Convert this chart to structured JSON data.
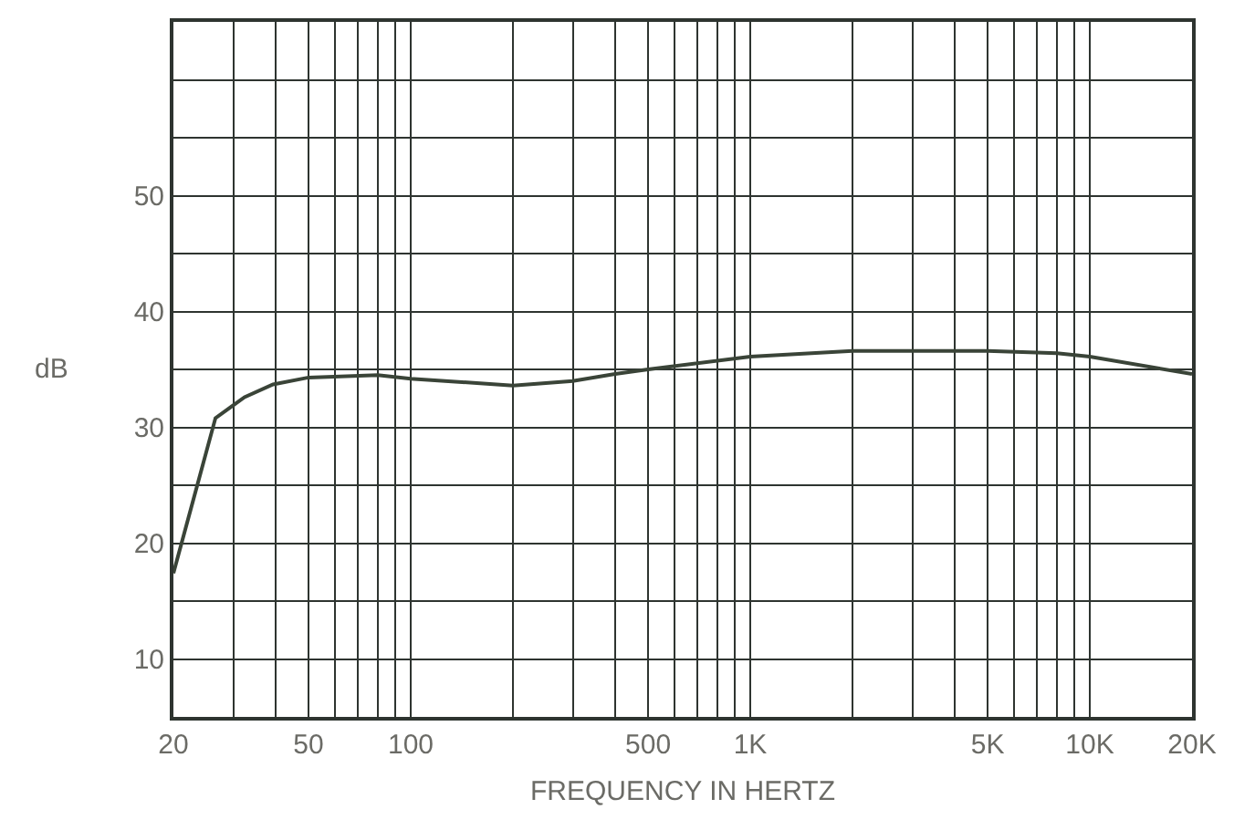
{
  "chart_data": {
    "type": "line",
    "xlabel": "FREQUENCY IN HERTZ",
    "ylabel": "dB",
    "log": "x",
    "grid": true,
    "marker": "none",
    "line_style": "solid",
    "xlim": [
      20,
      20000
    ],
    "ylim": [
      5,
      65
    ],
    "xticks": [
      20,
      {
        "value": 30,
        "label": null
      },
      {
        "value": 40,
        "label": null
      },
      50,
      {
        "value": 60,
        "label": null
      },
      {
        "value": 70,
        "label": null
      },
      {
        "value": 80,
        "label": null
      },
      {
        "value": 90,
        "label": null
      },
      100,
      {
        "value": 200,
        "label": null
      },
      {
        "value": 300,
        "label": null
      },
      {
        "value": 400,
        "label": null
      },
      500,
      {
        "value": 600,
        "label": null
      },
      {
        "value": 700,
        "label": null
      },
      {
        "value": 800,
        "label": null
      },
      {
        "value": 900,
        "label": null
      },
      {
        "value": 1000,
        "label": "1K"
      },
      {
        "value": 2000,
        "label": null
      },
      {
        "value": 3000,
        "label": null
      },
      {
        "value": 4000,
        "label": null
      },
      {
        "value": 5000,
        "label": "5K"
      },
      {
        "value": 6000,
        "label": null
      },
      {
        "value": 7000,
        "label": null
      },
      {
        "value": 8000,
        "label": null
      },
      {
        "value": 9000,
        "label": null
      },
      {
        "value": 10000,
        "label": "10K"
      },
      {
        "value": 20000,
        "label": "20K"
      }
    ],
    "yticks": [
      {
        "value": 5,
        "label": null
      },
      10,
      {
        "value": 15,
        "label": null
      },
      20,
      {
        "value": 25,
        "label": null
      },
      30,
      {
        "value": 35,
        "label": null
      },
      40,
      {
        "value": 45,
        "label": null
      },
      50,
      {
        "value": 55,
        "label": null
      },
      {
        "value": 60,
        "label": null
      },
      {
        "value": 65,
        "label": null
      }
    ],
    "x": [
      20,
      26.6,
      32.4,
      39.3,
      50,
      80,
      100,
      200,
      300,
      400,
      500,
      1000,
      2000,
      5000,
      8000,
      10000,
      20000
    ],
    "series": [
      {
        "color": "#3a4438",
        "values": [
          17.4,
          30.8,
          32.6,
          33.7,
          34.3,
          34.5,
          34.2,
          33.6,
          34.0,
          34.6,
          35.0,
          36.1,
          36.6,
          36.6,
          36.4,
          36.1,
          34.6
        ]
      }
    ]
  }
}
